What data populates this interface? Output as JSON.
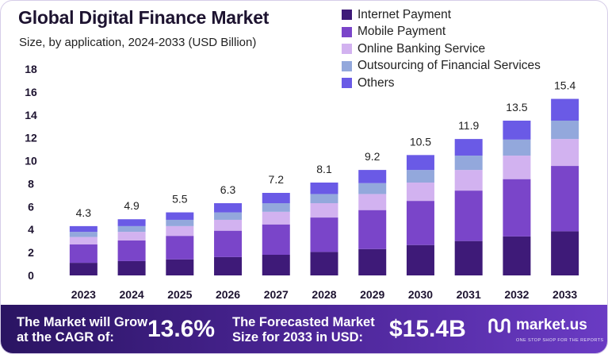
{
  "header": {
    "title": "Global Digital Finance Market",
    "subtitle": "Size, by application, 2024-2033 (USD Billion)"
  },
  "chart_data": {
    "type": "bar",
    "stacked": true,
    "categories": [
      "2023",
      "2024",
      "2025",
      "2026",
      "2027",
      "2028",
      "2029",
      "2030",
      "2031",
      "2032",
      "2033"
    ],
    "totals": [
      4.3,
      4.9,
      5.5,
      6.3,
      7.2,
      8.1,
      9.2,
      10.5,
      11.9,
      13.5,
      15.4
    ],
    "series": [
      {
        "name": "Internet Payment",
        "color": "#3e1a78",
        "values": [
          1.1,
          1.25,
          1.4,
          1.6,
          1.8,
          2.05,
          2.3,
          2.65,
          3.0,
          3.4,
          3.85
        ]
      },
      {
        "name": "Mobile Payment",
        "color": "#7a45c9",
        "values": [
          1.6,
          1.8,
          2.05,
          2.3,
          2.65,
          3.0,
          3.4,
          3.85,
          4.4,
          5.0,
          5.7
        ]
      },
      {
        "name": "Online Banking Service",
        "color": "#d2b2f0",
        "values": [
          0.65,
          0.75,
          0.85,
          0.95,
          1.1,
          1.25,
          1.4,
          1.6,
          1.8,
          2.05,
          2.35
        ]
      },
      {
        "name": "Outsourcing of Financial Services",
        "color": "#93a8dc",
        "values": [
          0.45,
          0.5,
          0.55,
          0.65,
          0.75,
          0.8,
          0.95,
          1.1,
          1.25,
          1.4,
          1.6
        ]
      },
      {
        "name": "Others",
        "color": "#6a5ae6",
        "values": [
          0.5,
          0.6,
          0.65,
          0.8,
          0.9,
          1.0,
          1.15,
          1.3,
          1.45,
          1.65,
          1.9
        ]
      }
    ],
    "yticks": [
      0,
      2,
      4,
      6,
      8,
      10,
      12,
      14,
      16,
      18
    ],
    "ylim": [
      0,
      18
    ],
    "grid": false,
    "legend_position": "top-right"
  },
  "footer": {
    "cagr_label_line1": "The Market will Grow",
    "cagr_label_line2": "at the CAGR of:",
    "cagr_value": "13.6%",
    "forecast_label_line1": "The Forecasted Market",
    "forecast_label_line2": "Size for 2033 in USD:",
    "forecast_value": "$15.4B",
    "brand_name": "market.us",
    "brand_tagline": "ONE STOP SHOP FOR THE REPORTS"
  }
}
